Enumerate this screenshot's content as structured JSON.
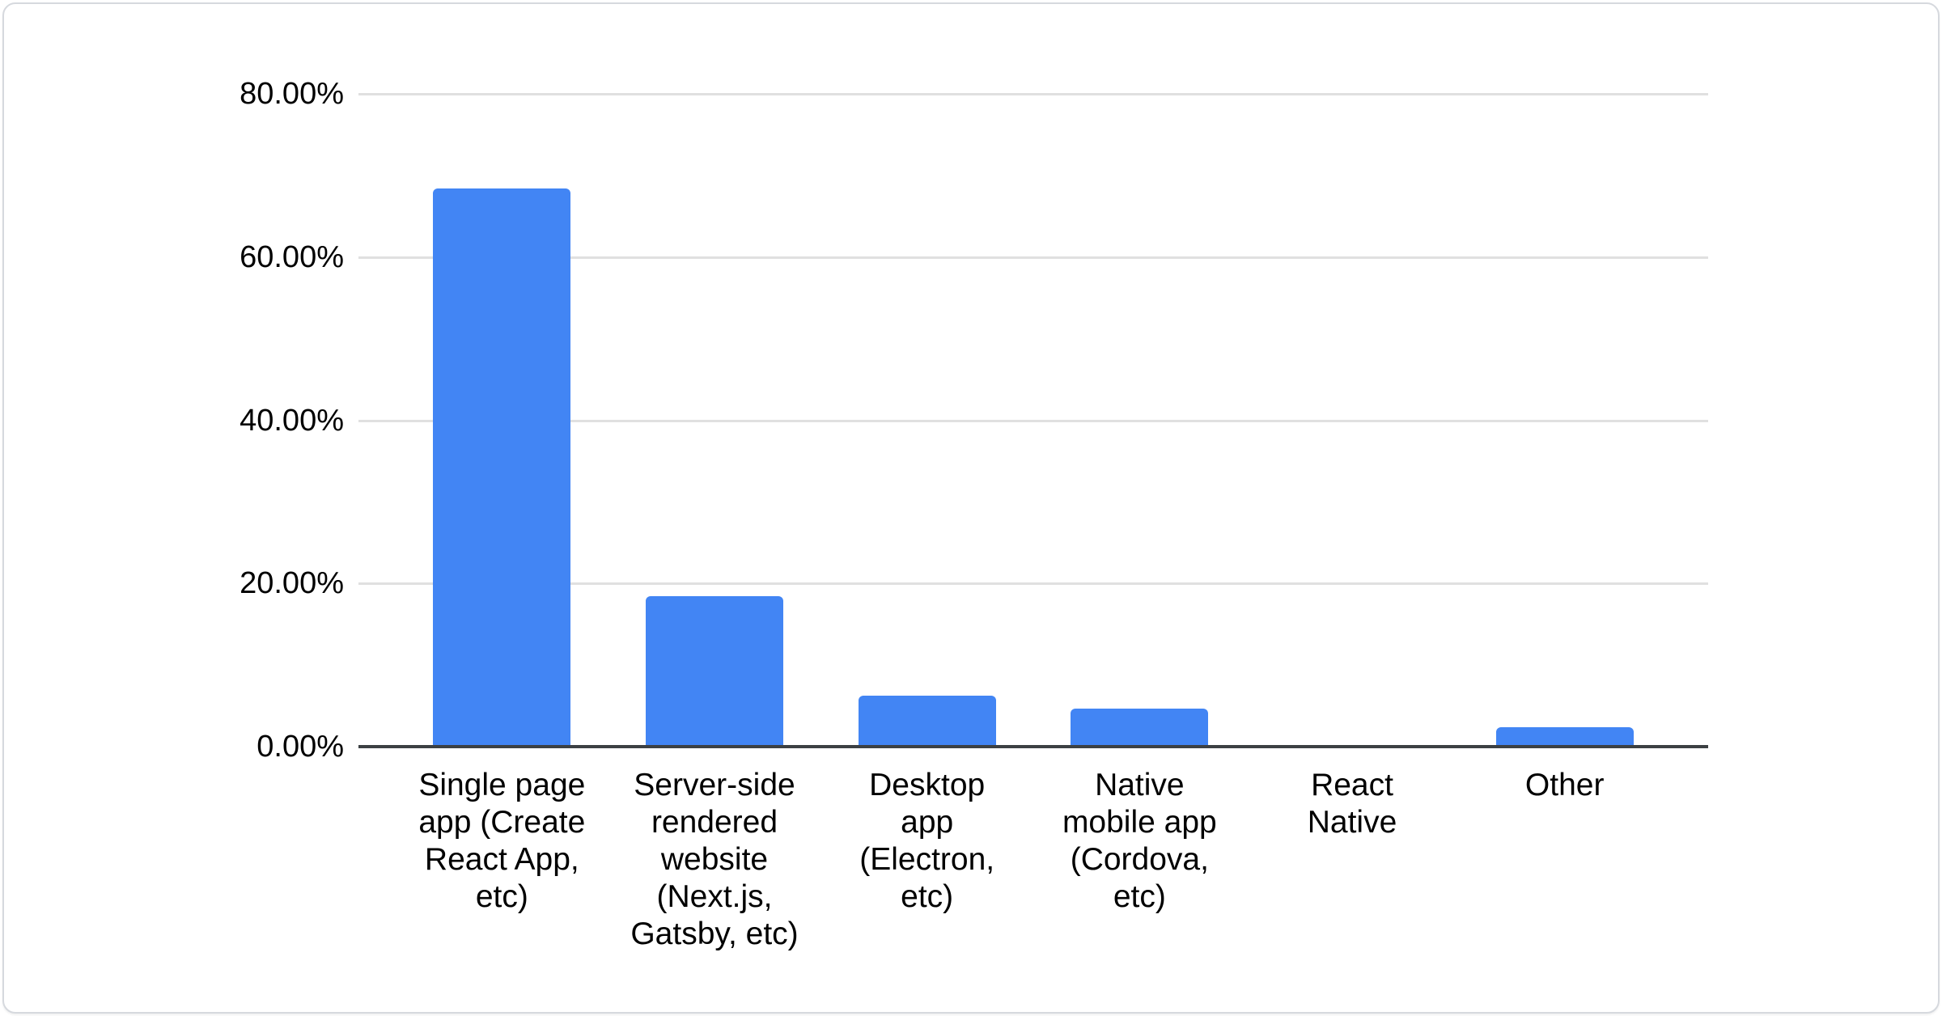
{
  "chart_data": {
    "type": "bar",
    "title": "",
    "xlabel": "",
    "ylabel": "",
    "categories": [
      "Single page app (Create React App, etc)",
      "Server-side rendered website (Next.js, Gatsby, etc)",
      "Desktop app (Electron, etc)",
      "Native mobile app (Cordova, etc)",
      "React Native",
      "Other"
    ],
    "values": [
      68.4,
      18.4,
      6.2,
      4.7,
      0,
      2.4
    ],
    "value_format": "percent",
    "ylim": [
      0,
      80
    ],
    "y_ticks": [
      {
        "label": "80.00%",
        "value": 80
      },
      {
        "label": "60.00%",
        "value": 60
      },
      {
        "label": "40.00%",
        "value": 40
      },
      {
        "label": "20.00%",
        "value": 20
      },
      {
        "label": "0.00%",
        "value": 0
      }
    ],
    "grid": true,
    "legend": "none",
    "bar_color": "#4285f4"
  },
  "colors": {
    "bar": "#4285f4",
    "gridline": "#e0e0e0",
    "axis_line": "#3c4043",
    "text": "#000000",
    "card_border": "#d6d9de",
    "background": "#ffffff"
  }
}
